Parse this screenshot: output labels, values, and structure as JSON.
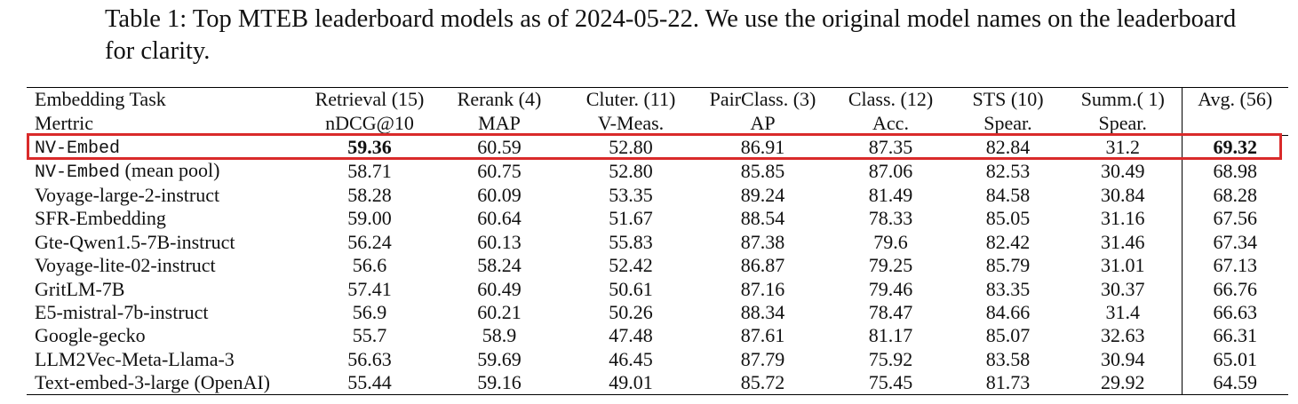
{
  "caption": "Table 1: Top MTEB leaderboard models as of 2024-05-22. We use the original model names on the leaderboard for clarity.",
  "table": {
    "header": [
      [
        "Embedding Task",
        "Retrieval (15)",
        "Rerank (4)",
        "Cluter. (11)",
        "PairClass. (3)",
        "Class. (12)",
        "STS (10)",
        "Summ.( 1)",
        "Avg. (56)"
      ],
      [
        "Mertric",
        "nDCG@10",
        "MAP",
        "V-Meas.",
        "AP",
        "Acc.",
        "Spear.",
        "Spear.",
        null
      ]
    ],
    "rows": [
      {
        "model": "NV-Embed",
        "model_style": "code",
        "highlight": true,
        "bold_columns": [
          0,
          7
        ],
        "values": [
          "59.36",
          "60.59",
          "52.80",
          "86.91",
          "87.35",
          "82.84",
          "31.2",
          "69.32"
        ]
      },
      {
        "model": "NV-Embed",
        "model_style": "code",
        "variant": "(mean pool)",
        "values": [
          "58.71",
          "60.75",
          "52.80",
          "85.85",
          "87.06",
          "82.53",
          "30.49",
          "68.98"
        ]
      },
      {
        "model": "Voyage-large-2-instruct",
        "values": [
          "58.28",
          "60.09",
          "53.35",
          "89.24",
          "81.49",
          "84.58",
          "30.84",
          "68.28"
        ]
      },
      {
        "model": "SFR-Embedding",
        "values": [
          "59.00",
          "60.64",
          "51.67",
          "88.54",
          "78.33",
          "85.05",
          "31.16",
          "67.56"
        ]
      },
      {
        "model": "Gte-Qwen1.5-7B-instruct",
        "values": [
          "56.24",
          "60.13",
          "55.83",
          "87.38",
          "79.6",
          "82.42",
          "31.46",
          "67.34"
        ]
      },
      {
        "model": "Voyage-lite-02-instruct",
        "values": [
          "56.6",
          "58.24",
          "52.42",
          "86.87",
          "79.25",
          "85.79",
          "31.01",
          "67.13"
        ]
      },
      {
        "model": "GritLM-7B",
        "values": [
          "57.41",
          "60.49",
          "50.61",
          "87.16",
          "79.46",
          "83.35",
          "30.37",
          "66.76"
        ]
      },
      {
        "model": "E5-mistral-7b-instruct",
        "values": [
          "56.9",
          "60.21",
          "50.26",
          "88.34",
          "78.47",
          "84.66",
          "31.4",
          "66.63"
        ]
      },
      {
        "model": "Google-gecko",
        "values": [
          "55.7",
          "58.9",
          "47.48",
          "87.61",
          "81.17",
          "85.07",
          "32.63",
          "66.31"
        ]
      },
      {
        "model": "LLM2Vec-Meta-Llama-3",
        "values": [
          "56.63",
          "59.69",
          "46.45",
          "87.79",
          "75.92",
          "83.58",
          "30.94",
          "65.01"
        ]
      },
      {
        "model": "Text-embed-3-large (OpenAI)",
        "values": [
          "55.44",
          "59.16",
          "49.01",
          "85.72",
          "75.45",
          "81.73",
          "29.92",
          "64.59"
        ]
      }
    ]
  }
}
